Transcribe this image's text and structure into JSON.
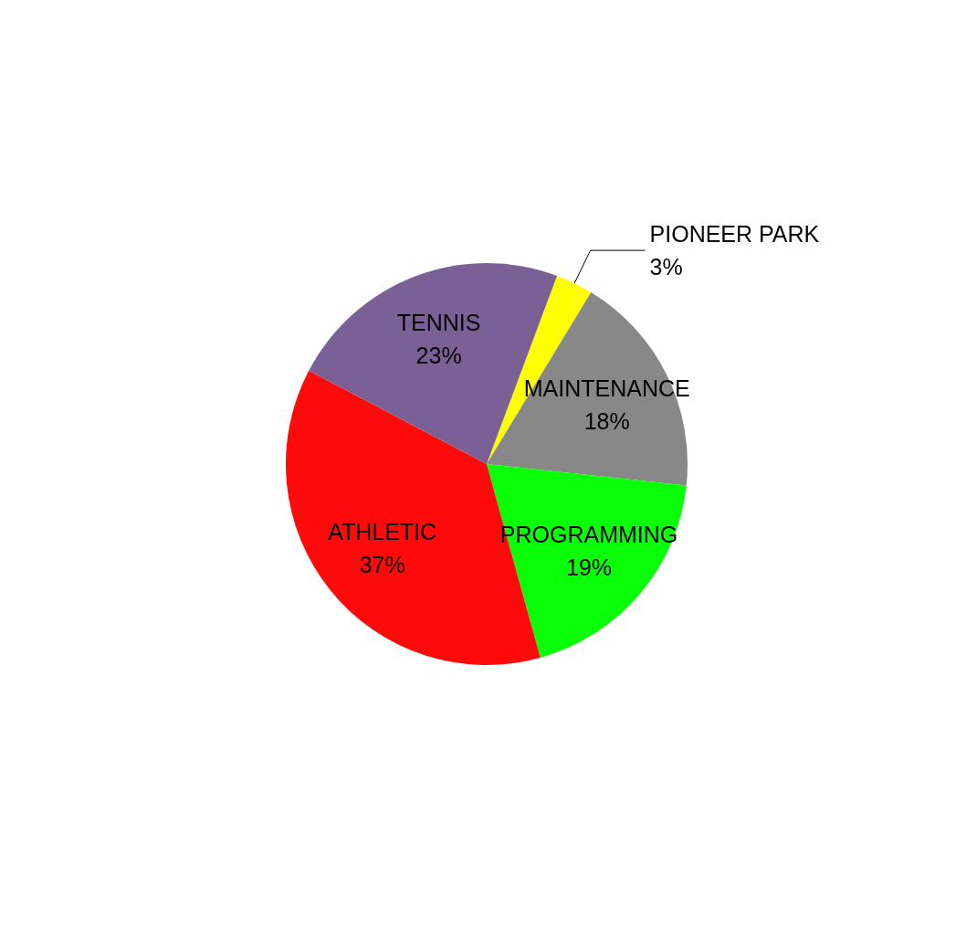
{
  "chart_data": {
    "type": "pie",
    "categories": [
      "PIONEER PARK",
      "MAINTENANCE",
      "PROGRAMMING",
      "ATHLETIC",
      "TENNIS"
    ],
    "values": [
      3,
      18,
      19,
      37,
      23
    ],
    "colors": [
      "#ffff00",
      "#888888",
      "#08ff08",
      "#ff0a0a",
      "#7b6096"
    ],
    "value_labels": [
      "3%",
      "18%",
      "19%",
      "37%",
      "23%"
    ]
  }
}
